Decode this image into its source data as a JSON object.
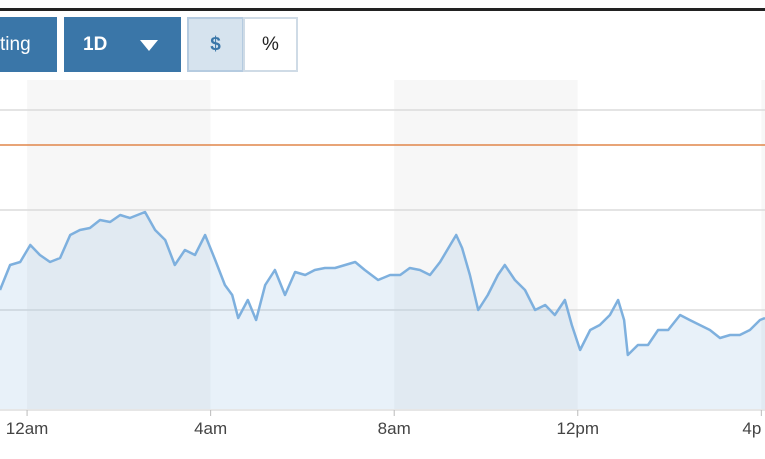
{
  "toolbar": {
    "buttons": [
      "ting",
      "1D",
      "$",
      "%"
    ]
  },
  "chart_data": {
    "type": "line",
    "x": [
      -0.59,
      -0.37,
      -0.15,
      0.07,
      0.28,
      0.5,
      0.72,
      0.94,
      1.15,
      1.37,
      1.59,
      1.81,
      2.03,
      2.24,
      2.57,
      2.79,
      3.01,
      3.22,
      3.44,
      3.66,
      3.88,
      4.1,
      4.31,
      4.47,
      4.6,
      4.81,
      4.99,
      5.19,
      5.4,
      5.62,
      5.84,
      6.06,
      6.27,
      6.49,
      6.71,
      6.93,
      7.15,
      7.36,
      7.65,
      7.91,
      8.13,
      8.34,
      8.56,
      8.78,
      9.0,
      9.22,
      9.35,
      9.48,
      9.65,
      9.83,
      10.04,
      10.26,
      10.41,
      10.63,
      10.85,
      11.07,
      11.29,
      11.5,
      11.72,
      11.87,
      12.05,
      12.27,
      12.48,
      12.7,
      12.88,
      13.01,
      13.09,
      13.31,
      13.53,
      13.75,
      13.97,
      14.23,
      14.44,
      14.66,
      14.88,
      15.1,
      15.32,
      15.53,
      15.75,
      15.97,
      16.08
    ],
    "series": [
      {
        "name": null,
        "color": "#7eb0de",
        "values": [
          1.2,
          1.45,
          1.48,
          1.65,
          1.55,
          1.48,
          1.52,
          1.75,
          1.8,
          1.82,
          1.9,
          1.88,
          1.95,
          1.92,
          1.98,
          1.8,
          1.7,
          1.45,
          1.6,
          1.55,
          1.75,
          1.5,
          1.25,
          1.15,
          0.92,
          1.1,
          0.9,
          1.25,
          1.4,
          1.15,
          1.38,
          1.35,
          1.4,
          1.42,
          1.42,
          1.45,
          1.48,
          1.4,
          1.3,
          1.35,
          1.35,
          1.42,
          1.4,
          1.35,
          1.48,
          1.65,
          1.75,
          1.62,
          1.35,
          1.0,
          1.15,
          1.35,
          1.45,
          1.3,
          1.2,
          1.0,
          1.05,
          0.95,
          1.1,
          0.85,
          0.6,
          0.8,
          0.85,
          0.95,
          1.1,
          0.9,
          0.55,
          0.65,
          0.65,
          0.8,
          0.8,
          0.95,
          0.9,
          0.85,
          0.8,
          0.72,
          0.75,
          0.75,
          0.8,
          0.9,
          0.92
        ]
      }
    ],
    "reference_line": {
      "value": 2.65,
      "color": "#e0864a"
    },
    "xlim": [
      -0.59,
      16.08
    ],
    "xticks": [
      {
        "value": 0,
        "label": "12am"
      },
      {
        "value": 4,
        "label": "4am"
      },
      {
        "value": 8,
        "label": "8am"
      },
      {
        "value": 12,
        "label": "12pm"
      },
      {
        "value": 16,
        "label": "4p"
      }
    ],
    "ylim": [
      0,
      4
    ],
    "yticks": [
      0,
      1,
      2,
      3
    ],
    "grid": true
  }
}
